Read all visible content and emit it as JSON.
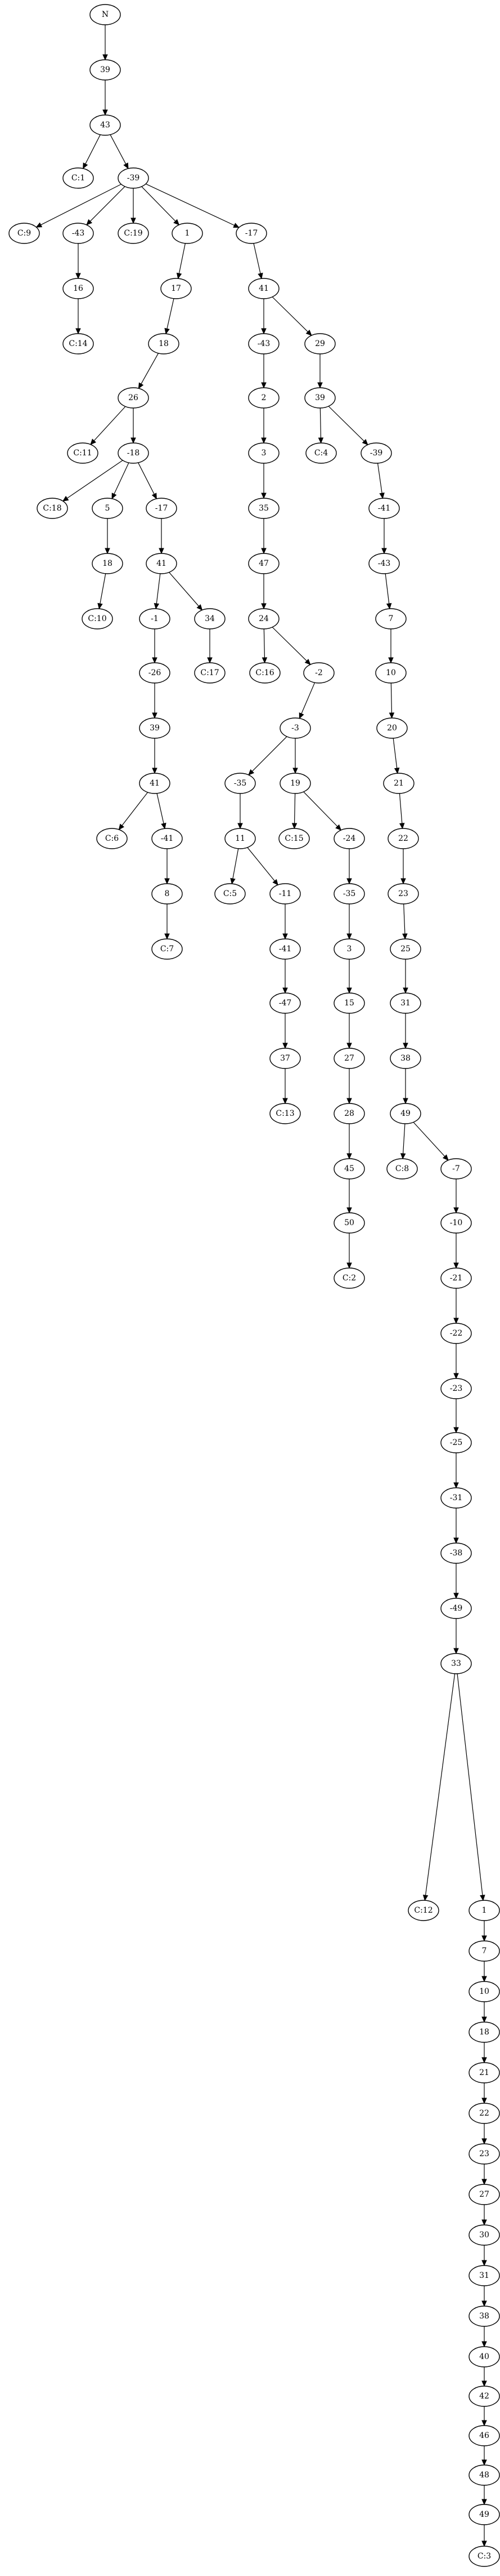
{
  "diagram": {
    "type": "tree",
    "nodes": [
      {
        "id": "n0",
        "label": "N"
      },
      {
        "id": "n1",
        "label": "39"
      },
      {
        "id": "n2",
        "label": "43"
      },
      {
        "id": "n3",
        "label": "C:1"
      },
      {
        "id": "n4",
        "label": "-39"
      },
      {
        "id": "n5",
        "label": "C:9"
      },
      {
        "id": "n6",
        "label": "-43"
      },
      {
        "id": "n7",
        "label": "C:19"
      },
      {
        "id": "n8",
        "label": "1"
      },
      {
        "id": "n9",
        "label": "-17"
      },
      {
        "id": "n10",
        "label": "16"
      },
      {
        "id": "n11",
        "label": "C:14"
      },
      {
        "id": "n12",
        "label": "17"
      },
      {
        "id": "n13",
        "label": "18"
      },
      {
        "id": "n14",
        "label": "26"
      },
      {
        "id": "n15",
        "label": "C:11"
      },
      {
        "id": "n16",
        "label": "-18"
      },
      {
        "id": "n17",
        "label": "C:18"
      },
      {
        "id": "n18",
        "label": "5"
      },
      {
        "id": "n19",
        "label": "-17"
      },
      {
        "id": "n20",
        "label": "18"
      },
      {
        "id": "n21",
        "label": "C:10"
      },
      {
        "id": "n22",
        "label": "41"
      },
      {
        "id": "n23",
        "label": "-1"
      },
      {
        "id": "n24",
        "label": "34"
      },
      {
        "id": "n25",
        "label": "-26"
      },
      {
        "id": "n26",
        "label": "C:17"
      },
      {
        "id": "n27",
        "label": "39"
      },
      {
        "id": "n28",
        "label": "41"
      },
      {
        "id": "n29",
        "label": "C:6"
      },
      {
        "id": "n30",
        "label": "-41"
      },
      {
        "id": "n31",
        "label": "8"
      },
      {
        "id": "n32",
        "label": "C:7"
      },
      {
        "id": "n33",
        "label": "41"
      },
      {
        "id": "n34",
        "label": "-43"
      },
      {
        "id": "n35",
        "label": "29"
      },
      {
        "id": "n36",
        "label": "2"
      },
      {
        "id": "n37",
        "label": "3"
      },
      {
        "id": "n38",
        "label": "35"
      },
      {
        "id": "n39",
        "label": "47"
      },
      {
        "id": "n40",
        "label": "24"
      },
      {
        "id": "n41",
        "label": "C:16"
      },
      {
        "id": "n42",
        "label": "-2"
      },
      {
        "id": "n43",
        "label": "-3"
      },
      {
        "id": "n44",
        "label": "-35"
      },
      {
        "id": "n45",
        "label": "19"
      },
      {
        "id": "n46",
        "label": "11"
      },
      {
        "id": "n47",
        "label": "C:15"
      },
      {
        "id": "n48",
        "label": "-24"
      },
      {
        "id": "n49",
        "label": "C:5"
      },
      {
        "id": "n50",
        "label": "-11"
      },
      {
        "id": "n51",
        "label": "-35"
      },
      {
        "id": "n52",
        "label": "-41"
      },
      {
        "id": "n53",
        "label": "3"
      },
      {
        "id": "n54",
        "label": "-47"
      },
      {
        "id": "n55",
        "label": "15"
      },
      {
        "id": "n56",
        "label": "37"
      },
      {
        "id": "n57",
        "label": "27"
      },
      {
        "id": "n58",
        "label": "C:13"
      },
      {
        "id": "n59",
        "label": "28"
      },
      {
        "id": "n60",
        "label": "45"
      },
      {
        "id": "n61",
        "label": "50"
      },
      {
        "id": "n62",
        "label": "C:2"
      },
      {
        "id": "n63",
        "label": "39"
      },
      {
        "id": "n64",
        "label": "C:4"
      },
      {
        "id": "n65",
        "label": "-39"
      },
      {
        "id": "n66",
        "label": "-41"
      },
      {
        "id": "n67",
        "label": "-43"
      },
      {
        "id": "n68",
        "label": "7"
      },
      {
        "id": "n69",
        "label": "10"
      },
      {
        "id": "n70",
        "label": "20"
      },
      {
        "id": "n71",
        "label": "21"
      },
      {
        "id": "n72",
        "label": "22"
      },
      {
        "id": "n73",
        "label": "23"
      },
      {
        "id": "n74",
        "label": "25"
      },
      {
        "id": "n75",
        "label": "31"
      },
      {
        "id": "n76",
        "label": "38"
      },
      {
        "id": "n77",
        "label": "49"
      },
      {
        "id": "n78",
        "label": "C:8"
      },
      {
        "id": "n79",
        "label": "-7"
      },
      {
        "id": "n80",
        "label": "-10"
      },
      {
        "id": "n81",
        "label": "-21"
      },
      {
        "id": "n82",
        "label": "-22"
      },
      {
        "id": "n83",
        "label": "-23"
      },
      {
        "id": "n84",
        "label": "-25"
      },
      {
        "id": "n85",
        "label": "-31"
      },
      {
        "id": "n86",
        "label": "-38"
      },
      {
        "id": "n87",
        "label": "-49"
      },
      {
        "id": "n88",
        "label": "33"
      },
      {
        "id": "n89",
        "label": "C:12"
      },
      {
        "id": "n90",
        "label": "1"
      },
      {
        "id": "n91",
        "label": "7"
      },
      {
        "id": "n92",
        "label": "10"
      },
      {
        "id": "n93",
        "label": "18"
      },
      {
        "id": "n94",
        "label": "21"
      },
      {
        "id": "n95",
        "label": "22"
      },
      {
        "id": "n96",
        "label": "23"
      },
      {
        "id": "n97",
        "label": "27"
      },
      {
        "id": "n98",
        "label": "30"
      },
      {
        "id": "n99",
        "label": "31"
      },
      {
        "id": "n100",
        "label": "38"
      },
      {
        "id": "n101",
        "label": "40"
      },
      {
        "id": "n102",
        "label": "42"
      },
      {
        "id": "n103",
        "label": "46"
      },
      {
        "id": "n104",
        "label": "48"
      },
      {
        "id": "n105",
        "label": "49"
      },
      {
        "id": "n106",
        "label": "C:3"
      }
    ],
    "edges": [
      [
        "n0",
        "n1"
      ],
      [
        "n1",
        "n2"
      ],
      [
        "n2",
        "n3"
      ],
      [
        "n2",
        "n4"
      ],
      [
        "n4",
        "n5"
      ],
      [
        "n4",
        "n6"
      ],
      [
        "n4",
        "n7"
      ],
      [
        "n4",
        "n8"
      ],
      [
        "n4",
        "n9"
      ],
      [
        "n6",
        "n10"
      ],
      [
        "n10",
        "n11"
      ],
      [
        "n8",
        "n12"
      ],
      [
        "n12",
        "n13"
      ],
      [
        "n13",
        "n14"
      ],
      [
        "n14",
        "n15"
      ],
      [
        "n14",
        "n16"
      ],
      [
        "n16",
        "n17"
      ],
      [
        "n16",
        "n18"
      ],
      [
        "n16",
        "n19"
      ],
      [
        "n18",
        "n20"
      ],
      [
        "n20",
        "n21"
      ],
      [
        "n19",
        "n22"
      ],
      [
        "n22",
        "n23"
      ],
      [
        "n22",
        "n24"
      ],
      [
        "n23",
        "n25"
      ],
      [
        "n24",
        "n26"
      ],
      [
        "n25",
        "n27"
      ],
      [
        "n27",
        "n28"
      ],
      [
        "n28",
        "n29"
      ],
      [
        "n28",
        "n30"
      ],
      [
        "n30",
        "n31"
      ],
      [
        "n31",
        "n32"
      ],
      [
        "n9",
        "n33"
      ],
      [
        "n33",
        "n34"
      ],
      [
        "n33",
        "n35"
      ],
      [
        "n34",
        "n36"
      ],
      [
        "n36",
        "n37"
      ],
      [
        "n37",
        "n38"
      ],
      [
        "n38",
        "n39"
      ],
      [
        "n39",
        "n40"
      ],
      [
        "n40",
        "n41"
      ],
      [
        "n40",
        "n42"
      ],
      [
        "n42",
        "n43"
      ],
      [
        "n43",
        "n44"
      ],
      [
        "n43",
        "n45"
      ],
      [
        "n44",
        "n46"
      ],
      [
        "n45",
        "n47"
      ],
      [
        "n45",
        "n48"
      ],
      [
        "n46",
        "n49"
      ],
      [
        "n46",
        "n50"
      ],
      [
        "n48",
        "n51"
      ],
      [
        "n50",
        "n52"
      ],
      [
        "n51",
        "n53"
      ],
      [
        "n52",
        "n54"
      ],
      [
        "n53",
        "n55"
      ],
      [
        "n54",
        "n56"
      ],
      [
        "n55",
        "n57"
      ],
      [
        "n56",
        "n58"
      ],
      [
        "n57",
        "n59"
      ],
      [
        "n59",
        "n60"
      ],
      [
        "n60",
        "n61"
      ],
      [
        "n61",
        "n62"
      ],
      [
        "n35",
        "n63"
      ],
      [
        "n63",
        "n64"
      ],
      [
        "n63",
        "n65"
      ],
      [
        "n65",
        "n66"
      ],
      [
        "n66",
        "n67"
      ],
      [
        "n67",
        "n68"
      ],
      [
        "n68",
        "n69"
      ],
      [
        "n69",
        "n70"
      ],
      [
        "n70",
        "n71"
      ],
      [
        "n71",
        "n72"
      ],
      [
        "n72",
        "n73"
      ],
      [
        "n73",
        "n74"
      ],
      [
        "n74",
        "n75"
      ],
      [
        "n75",
        "n76"
      ],
      [
        "n76",
        "n77"
      ],
      [
        "n77",
        "n78"
      ],
      [
        "n77",
        "n79"
      ],
      [
        "n79",
        "n80"
      ],
      [
        "n80",
        "n81"
      ],
      [
        "n81",
        "n82"
      ],
      [
        "n82",
        "n83"
      ],
      [
        "n83",
        "n84"
      ],
      [
        "n84",
        "n85"
      ],
      [
        "n85",
        "n86"
      ],
      [
        "n86",
        "n87"
      ],
      [
        "n87",
        "n88"
      ],
      [
        "n88",
        "n89"
      ],
      [
        "n88",
        "n90"
      ],
      [
        "n90",
        "n91"
      ],
      [
        "n91",
        "n92"
      ],
      [
        "n92",
        "n93"
      ],
      [
        "n93",
        "n94"
      ],
      [
        "n94",
        "n95"
      ],
      [
        "n95",
        "n96"
      ],
      [
        "n96",
        "n97"
      ],
      [
        "n97",
        "n98"
      ],
      [
        "n98",
        "n99"
      ],
      [
        "n99",
        "n100"
      ],
      [
        "n100",
        "n101"
      ],
      [
        "n101",
        "n102"
      ],
      [
        "n102",
        "n103"
      ],
      [
        "n103",
        "n104"
      ],
      [
        "n104",
        "n105"
      ],
      [
        "n105",
        "n106"
      ]
    ]
  }
}
